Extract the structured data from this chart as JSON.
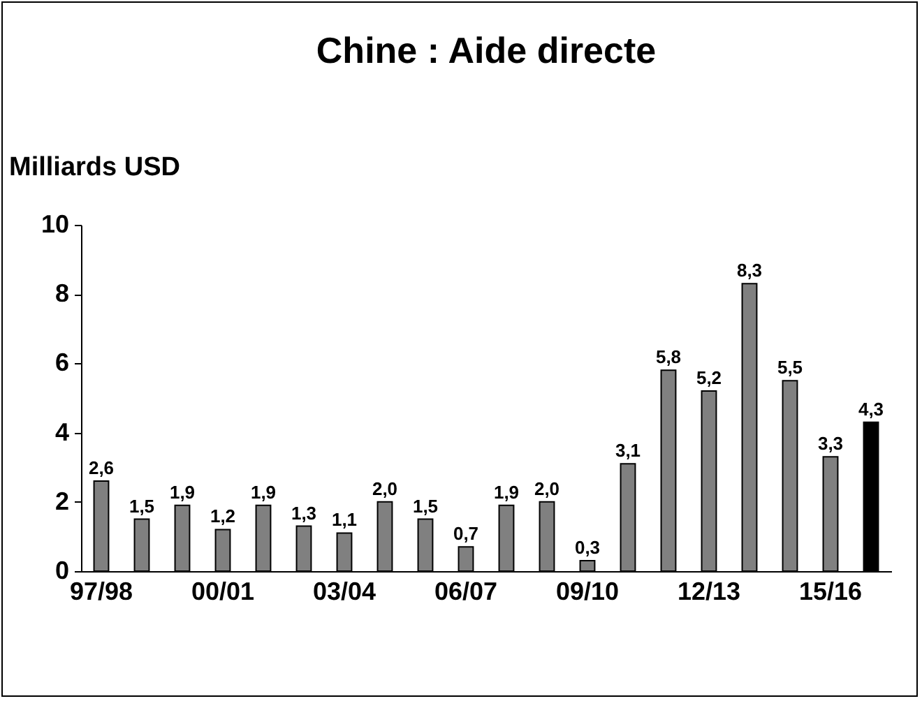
{
  "chart_data": {
    "type": "bar",
    "title": "Chine : Aide directe",
    "ylabel": "Milliards USD",
    "categories": [
      "97/98",
      null,
      null,
      "00/01",
      null,
      null,
      "03/04",
      null,
      null,
      "06/07",
      null,
      null,
      "09/10",
      null,
      null,
      "12/13",
      null,
      null,
      "15/16",
      null
    ],
    "values": [
      2.6,
      1.5,
      1.9,
      1.2,
      1.9,
      1.3,
      1.1,
      2.0,
      1.5,
      0.7,
      1.9,
      2.0,
      0.3,
      3.1,
      5.8,
      5.2,
      8.3,
      5.5,
      3.3,
      4.3
    ],
    "value_labels": [
      "2,6",
      "1,5",
      "1,9",
      "1,2",
      "1,9",
      "1,3",
      "1,1",
      "2,0",
      "1,5",
      "0,7",
      "1,9",
      "2,0",
      "0,3",
      "3,1",
      "5,8",
      "5,2",
      "8,3",
      "5,5",
      "3,3",
      "4,3"
    ],
    "colors": [
      "#808080",
      "#808080",
      "#808080",
      "#808080",
      "#808080",
      "#808080",
      "#808080",
      "#808080",
      "#808080",
      "#808080",
      "#808080",
      "#808080",
      "#808080",
      "#808080",
      "#808080",
      "#808080",
      "#808080",
      "#808080",
      "#808080",
      "#000000"
    ],
    "ylim": [
      0,
      10
    ],
    "yticks": [
      0,
      2,
      4,
      6,
      8,
      10
    ],
    "grid": false
  }
}
